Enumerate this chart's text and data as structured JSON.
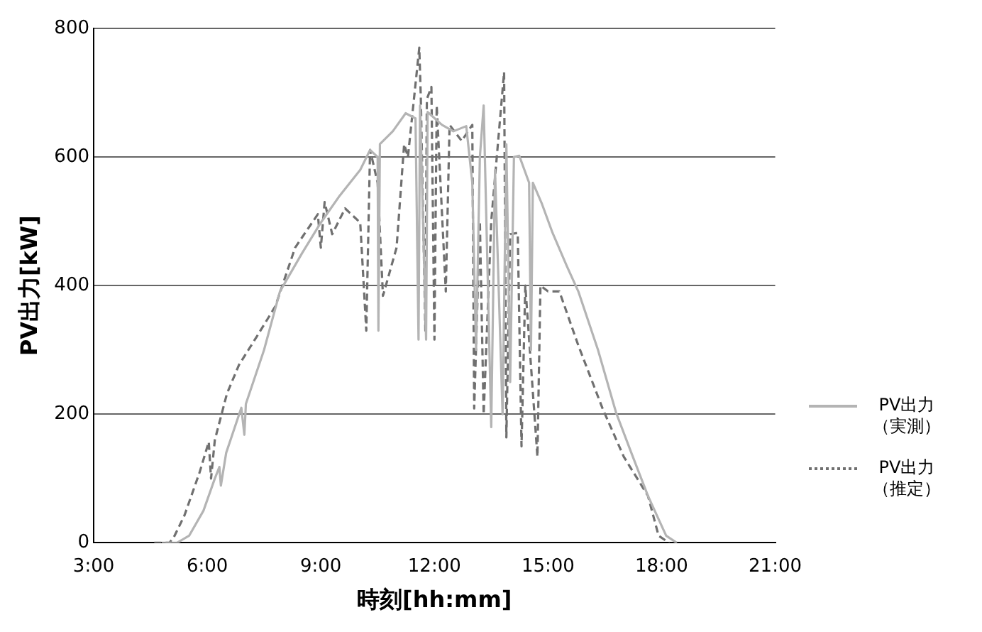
{
  "chart_data": {
    "type": "line",
    "xlabel": "時刻[hh:mm]",
    "ylabel": "PV出力[kW]",
    "xlim": [
      3,
      21
    ],
    "xticks": [
      {
        "value": 3,
        "label": "3:00"
      },
      {
        "value": 6,
        "label": "6:00"
      },
      {
        "value": 9,
        "label": "9:00"
      },
      {
        "value": 12,
        "label": "12:00"
      },
      {
        "value": 15,
        "label": "15:00"
      },
      {
        "value": 18,
        "label": "18:00"
      },
      {
        "value": 21,
        "label": "21:00"
      }
    ],
    "ylim": [
      0,
      800
    ],
    "yticks": [
      0,
      200,
      400,
      600,
      800
    ],
    "grid": "y",
    "legend": "right",
    "marker": "none",
    "series": [
      {
        "name": "PV出力（実測）",
        "color": "#b4b4b4",
        "line_style": "solid",
        "x": [
          4.8,
          5.2,
          5.52,
          5.9,
          6.2,
          6.32,
          6.36,
          6.5,
          6.9,
          6.98,
          7.02,
          7.5,
          7.92,
          8.5,
          9.0,
          9.5,
          10.04,
          10.3,
          10.5,
          10.52,
          10.56,
          10.9,
          11.24,
          11.5,
          11.58,
          11.62,
          11.78,
          11.82,
          12.2,
          12.5,
          12.84,
          13.0,
          13.1,
          13.2,
          13.3,
          13.5,
          13.6,
          13.8,
          13.9,
          14.0,
          14.1,
          14.24,
          14.5,
          14.55,
          14.6,
          14.84,
          15.12,
          15.5,
          15.8,
          16.32,
          16.8,
          17.2,
          17.64,
          18.12,
          18.4
        ],
        "values": [
          0,
          0,
          11,
          50,
          100,
          118,
          89,
          140,
          210,
          168,
          216,
          300,
          391,
          450,
          498,
          540,
          580,
          611,
          600,
          330,
          620,
          640,
          668,
          660,
          316,
          680,
          316,
          670,
          650,
          640,
          648,
          560,
          300,
          600,
          680,
          180,
          580,
          200,
          620,
          250,
          600,
          602,
          560,
          300,
          560,
          527,
          482,
          430,
          391,
          300,
          202,
          140,
          73,
          11,
          0
        ]
      },
      {
        "name": "PV出力（推定）",
        "color": "#707070",
        "line_style": "dashed",
        "x": [
          4.6,
          5.0,
          5.12,
          5.4,
          5.8,
          6.04,
          6.1,
          6.2,
          6.52,
          6.84,
          7.3,
          7.8,
          8.32,
          8.92,
          9.0,
          9.1,
          9.3,
          9.64,
          10.04,
          10.2,
          10.3,
          10.5,
          10.64,
          11.0,
          11.2,
          11.3,
          11.6,
          11.64,
          11.76,
          11.8,
          11.92,
          12.0,
          12.06,
          12.3,
          12.4,
          12.72,
          13.0,
          13.05,
          13.2,
          13.3,
          13.5,
          13.84,
          13.9,
          14.0,
          14.2,
          14.3,
          14.4,
          14.72,
          14.8,
          15.0,
          15.3,
          15.8,
          16.44,
          17.0,
          17.64,
          17.92,
          18.2
        ],
        "values": [
          0,
          0,
          9,
          43,
          110,
          157,
          100,
          160,
          232,
          277,
          320,
          368,
          459,
          511,
          459,
          530,
          480,
          520,
          498,
          330,
          611,
          560,
          384,
          459,
          620,
          600,
          770,
          693,
          330,
          690,
          709,
          316,
          680,
          391,
          650,
          625,
          650,
          209,
          500,
          200,
          500,
          732,
          164,
          480,
          482,
          150,
          400,
          134,
          400,
          391,
          391,
          307,
          209,
          134,
          73,
          11,
          0
        ]
      }
    ]
  }
}
